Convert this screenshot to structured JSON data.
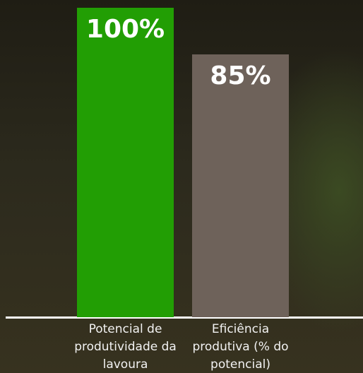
{
  "chart_data": {
    "type": "bar",
    "categories": [
      "Potencial de produtividade da lavoura",
      "Eficiência produtiva (% do potencial)"
    ],
    "values": [
      100,
      85
    ],
    "value_labels": [
      "100%",
      "85%"
    ],
    "colors": [
      "#229e04",
      "#6e625a"
    ],
    "ylim": [
      0,
      100
    ]
  }
}
